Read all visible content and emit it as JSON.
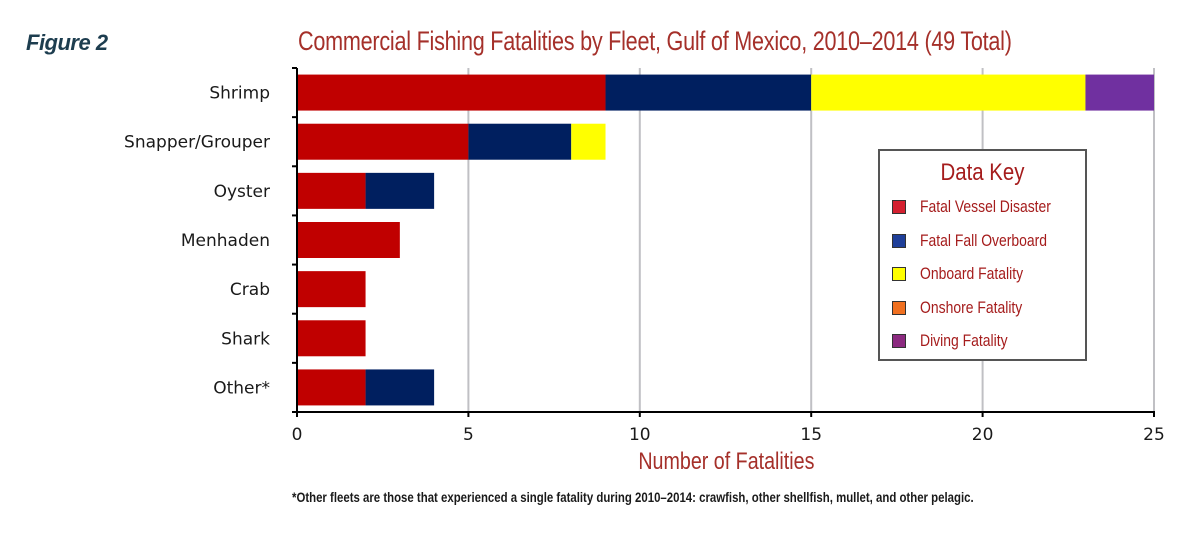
{
  "figure_label": "Figure 2",
  "chart_data": {
    "type": "bar",
    "orientation": "horizontal",
    "stacked": true,
    "title": "Commercial Fishing Fatalities by Fleet, Gulf of Mexico, 2010–2014 (49 Total)",
    "xlabel": "Number of Fatalities",
    "ylabel": "",
    "xlim": [
      0,
      25
    ],
    "xticks": [
      0,
      5,
      10,
      15,
      20,
      25
    ],
    "grid": true,
    "categories": [
      "Shrimp",
      "Snapper/Grouper",
      "Oyster",
      "Menhaden",
      "Crab",
      "Shark",
      "Other*"
    ],
    "series": [
      {
        "name": "Fatal Vessel Disaster",
        "color": "#c00000",
        "legend_color": "#d42030",
        "values": [
          9,
          5,
          2,
          3,
          2,
          2,
          2
        ]
      },
      {
        "name": "Fatal Fall Overboard",
        "color": "#001f5f",
        "legend_color": "#1f3f99",
        "values": [
          6,
          3,
          2,
          0,
          0,
          0,
          2
        ]
      },
      {
        "name": "Onboard Fatality",
        "color": "#ffff00",
        "legend_color": "#ffff00",
        "values": [
          8,
          1,
          0,
          0,
          0,
          0,
          0
        ]
      },
      {
        "name": "Onshore Fatality",
        "color": "#f07020",
        "legend_color": "#f07020",
        "values": [
          0,
          0,
          0,
          0,
          0,
          0,
          0
        ]
      },
      {
        "name": "Diving Fatality",
        "color": "#7030a0",
        "legend_color": "#8b2a80",
        "values": [
          2,
          0,
          0,
          0,
          0,
          0,
          0
        ]
      }
    ],
    "legend": {
      "title": "Data Key",
      "placement": "right"
    },
    "footnote": "*Other fleets are those that experienced a single fatality during 2010–2014: crawfish, other shellfish, mullet, and other pelagic."
  }
}
